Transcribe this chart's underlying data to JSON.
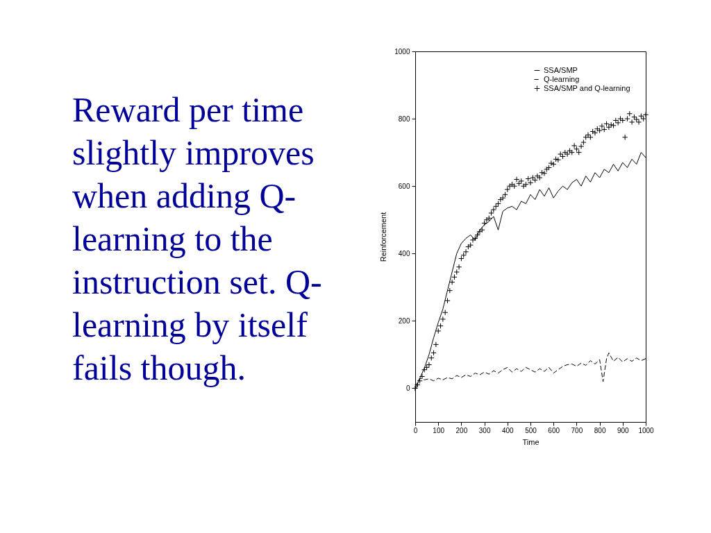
{
  "chart_data": {
    "type": "line",
    "xlabel": "Time",
    "ylabel": "Reinforcement",
    "xlim": [
      0,
      1000
    ],
    "xticks": [
      0,
      100,
      200,
      300,
      400,
      500,
      600,
      700,
      800,
      900,
      1000
    ],
    "ylim": [
      -100,
      1000
    ],
    "yticks": [
      0,
      200,
      400,
      600,
      800,
      1000
    ],
    "legend": "top right",
    "annotations": [
      "Reward per time\nslightly improves\nwhen adding Q-\nlearning to the\ninstruction set. Q-\nlearning by itself\nfails though."
    ],
    "series": [
      {
        "name": "SSA/SMP",
        "color": "#000000",
        "line_style": "solid",
        "x": [
          0,
          20,
          40,
          60,
          80,
          100,
          120,
          140,
          160,
          180,
          200,
          220,
          240,
          260,
          280,
          300,
          320,
          340,
          360,
          380,
          400,
          420,
          440,
          460,
          480,
          500,
          520,
          540,
          560,
          580,
          600,
          620,
          640,
          660,
          680,
          700,
          720,
          740,
          760,
          780,
          800,
          820,
          840,
          860,
          880,
          900,
          920,
          940,
          960,
          980,
          1000
        ],
        "values": [
          -5,
          30,
          60,
          100,
          150,
          195,
          235,
          290,
          345,
          400,
          430,
          445,
          455,
          440,
          470,
          485,
          495,
          510,
          470,
          525,
          535,
          540,
          530,
          555,
          548,
          575,
          560,
          590,
          570,
          595,
          565,
          585,
          600,
          590,
          610,
          620,
          600,
          630,
          612,
          640,
          625,
          650,
          640,
          665,
          645,
          670,
          655,
          680,
          665,
          700,
          685
        ]
      },
      {
        "name": "Q-learning",
        "color": "#000000",
        "line_style": "dashed",
        "x": [
          0,
          20,
          40,
          60,
          80,
          100,
          120,
          140,
          160,
          180,
          200,
          220,
          240,
          260,
          280,
          300,
          320,
          340,
          360,
          380,
          400,
          420,
          440,
          460,
          480,
          500,
          520,
          540,
          560,
          580,
          600,
          620,
          640,
          660,
          680,
          700,
          720,
          740,
          760,
          780,
          800,
          815,
          830,
          840,
          860,
          880,
          900,
          920,
          940,
          960,
          980,
          1000
        ],
        "values": [
          5,
          30,
          25,
          28,
          22,
          30,
          25,
          32,
          28,
          38,
          32,
          40,
          35,
          45,
          40,
          48,
          42,
          52,
          45,
          55,
          62,
          48,
          58,
          50,
          62,
          55,
          48,
          58,
          50,
          62,
          45,
          55,
          65,
          70,
          72,
          65,
          75,
          68,
          82,
          72,
          85,
          20,
          88,
          105,
          80,
          92,
          78,
          88,
          80,
          90,
          82,
          88
        ]
      },
      {
        "name": "SSA/SMP and Q-learning",
        "color": "#000000",
        "type": "scatter",
        "marker": "cross",
        "x": [
          0,
          10,
          20,
          30,
          40,
          50,
          60,
          70,
          80,
          90,
          100,
          110,
          120,
          130,
          140,
          150,
          160,
          170,
          180,
          190,
          200,
          210,
          220,
          230,
          240,
          250,
          260,
          270,
          280,
          290,
          300,
          310,
          320,
          330,
          340,
          350,
          360,
          370,
          380,
          390,
          400,
          410,
          420,
          430,
          440,
          450,
          460,
          470,
          480,
          490,
          500,
          510,
          520,
          530,
          540,
          550,
          560,
          570,
          580,
          590,
          600,
          610,
          620,
          630,
          640,
          650,
          660,
          670,
          680,
          690,
          700,
          710,
          720,
          730,
          740,
          750,
          760,
          770,
          780,
          790,
          800,
          810,
          820,
          830,
          840,
          850,
          860,
          870,
          880,
          890,
          900,
          910,
          920,
          930,
          940,
          950,
          960,
          970,
          980,
          990,
          1000
        ],
        "values": [
          0,
          10,
          22,
          35,
          55,
          62,
          70,
          90,
          105,
          130,
          170,
          185,
          205,
          225,
          260,
          290,
          315,
          330,
          345,
          360,
          385,
          395,
          405,
          420,
          425,
          440,
          445,
          455,
          465,
          470,
          490,
          500,
          505,
          520,
          530,
          540,
          548,
          560,
          565,
          575,
          590,
          600,
          605,
          600,
          620,
          608,
          615,
          600,
          605,
          622,
          610,
          625,
          618,
          630,
          625,
          640,
          638,
          650,
          655,
          668,
          665,
          680,
          678,
          695,
          688,
          700,
          695,
          705,
          700,
          720,
          710,
          700,
          718,
          730,
          745,
          752,
          745,
          762,
          758,
          770,
          765,
          778,
          768,
          785,
          775,
          782,
          780,
          795,
          788,
          800,
          795,
          745,
          800,
          815,
          790,
          805,
          798,
          790,
          808,
          800,
          812
        ]
      }
    ]
  }
}
